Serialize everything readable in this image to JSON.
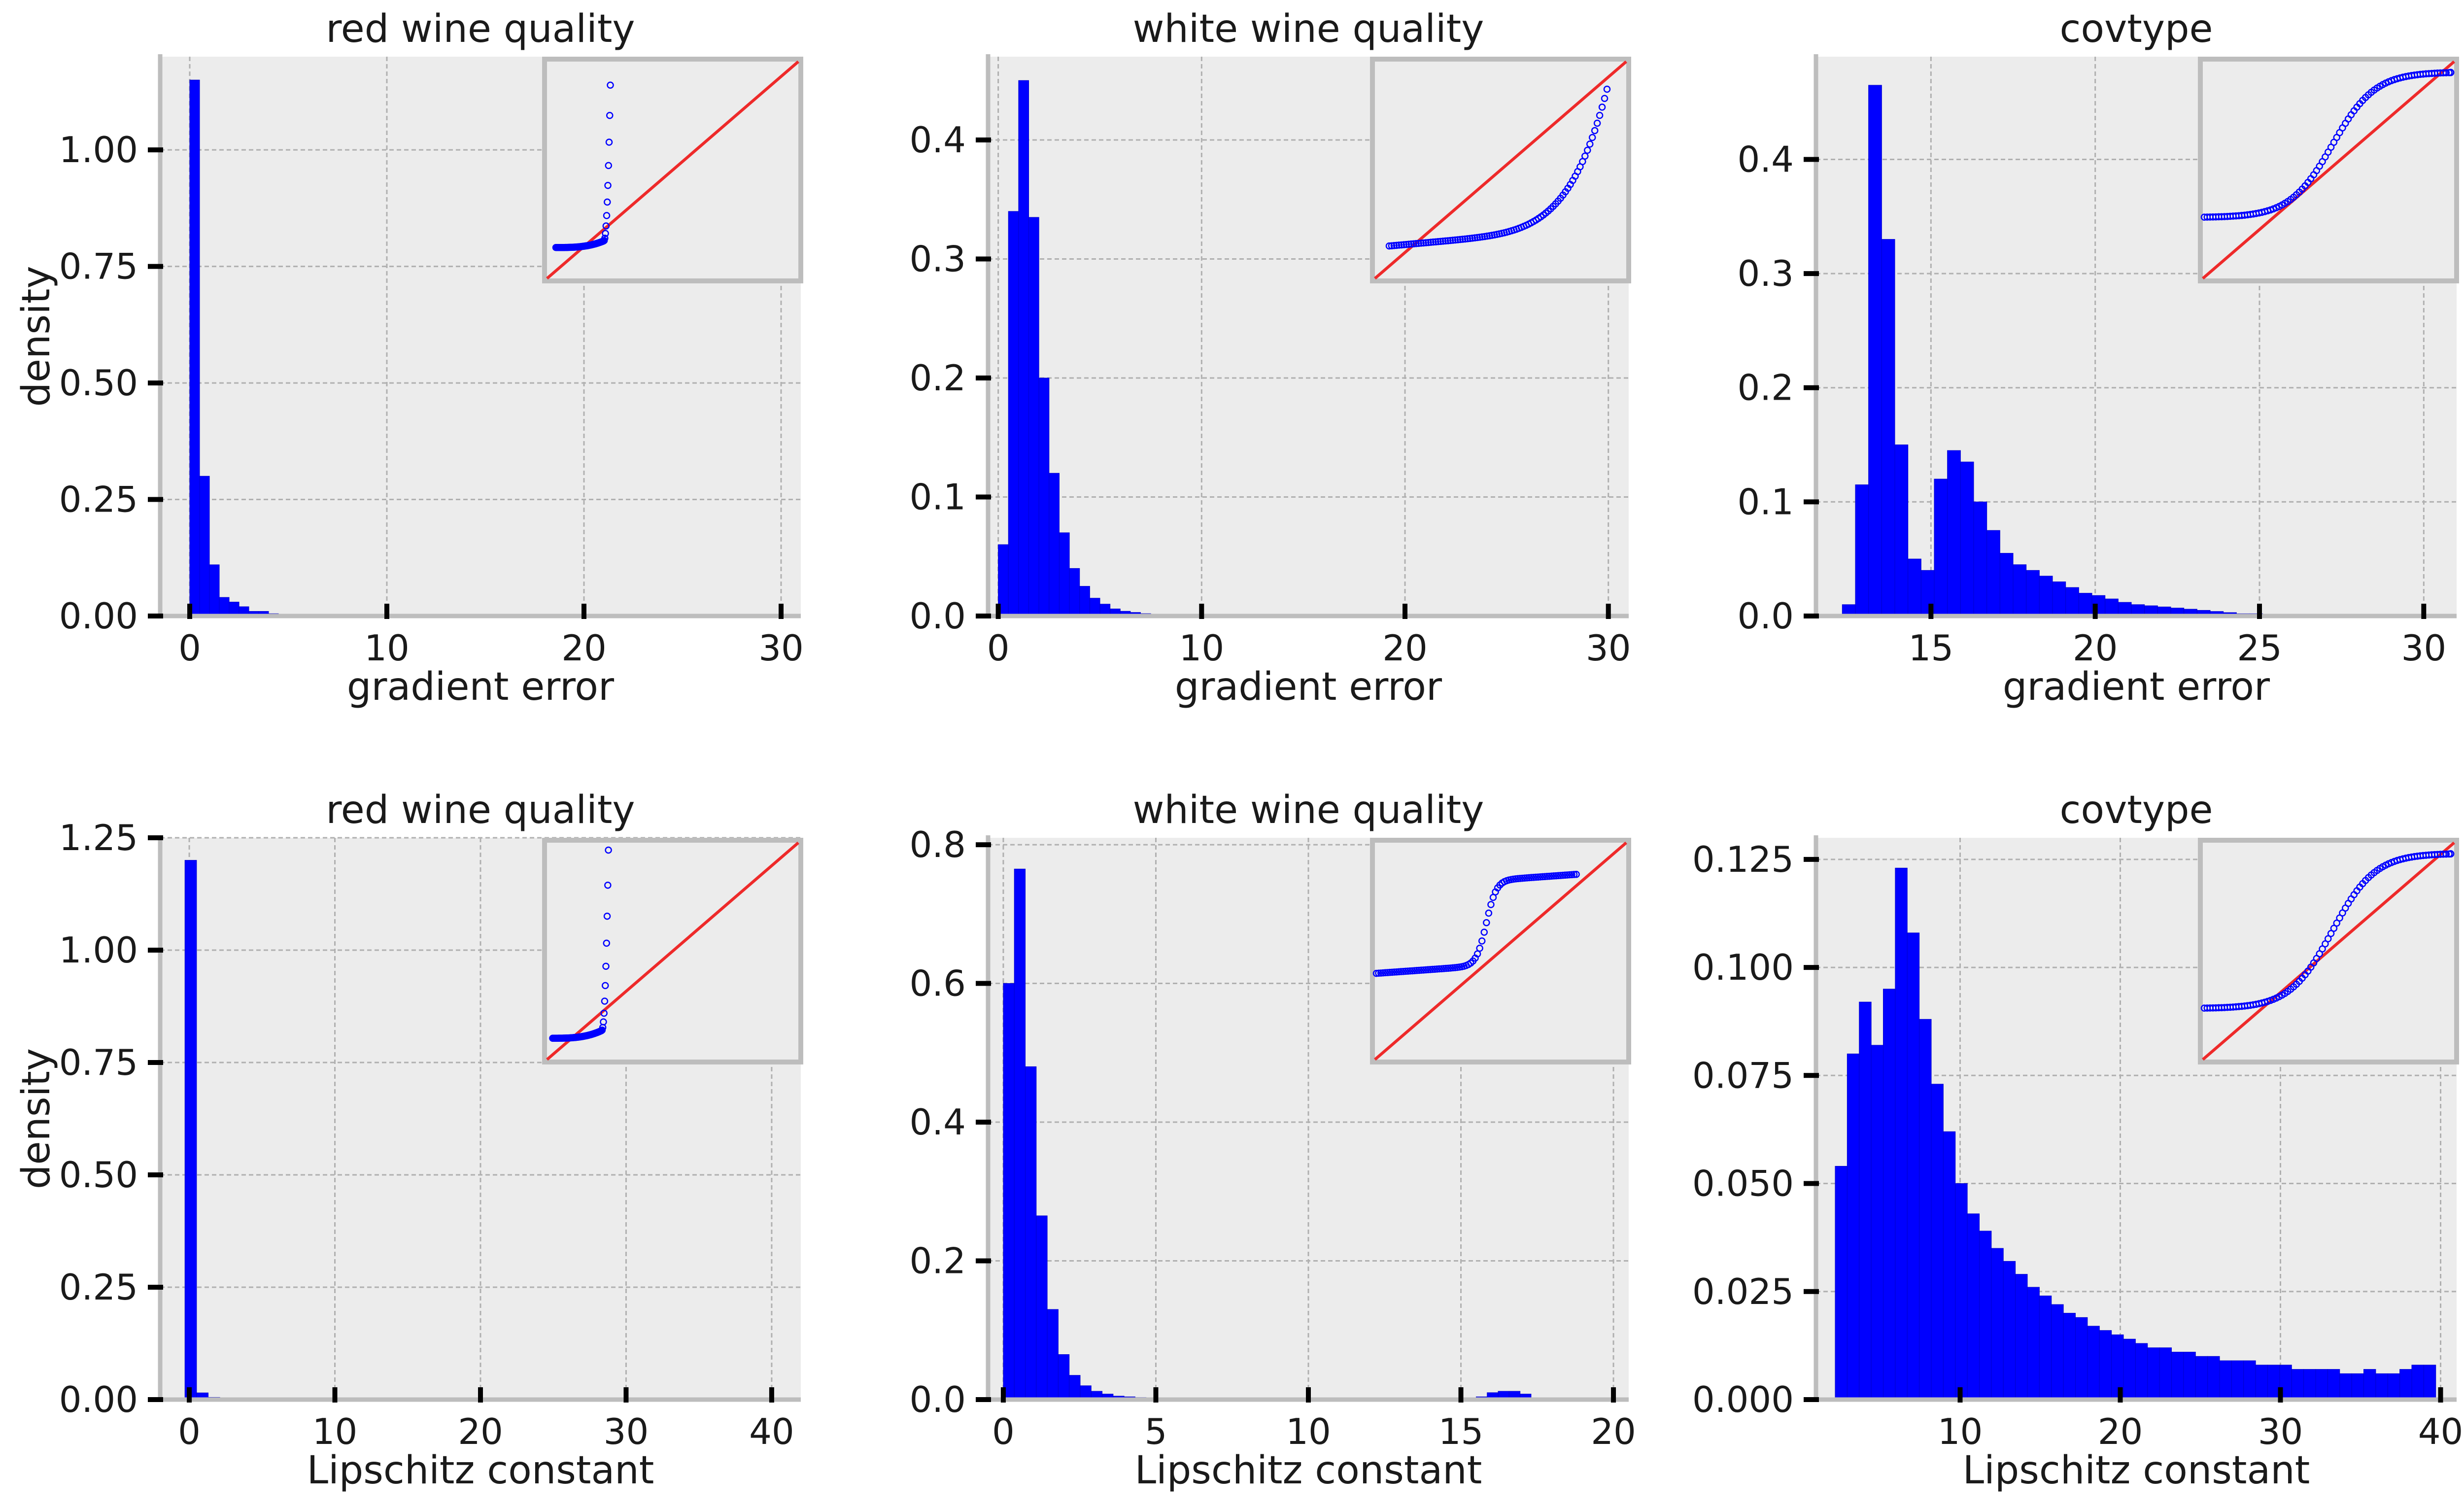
{
  "chart_data": [
    {
      "type": "bar",
      "title": "red wine quality",
      "xlabel": "gradient error",
      "ylabel": "density",
      "xlim": [
        -1.5,
        31
      ],
      "ylim": [
        0,
        1.2
      ],
      "xticks": [
        0,
        10,
        20,
        30
      ],
      "xtick_labels": [
        "0",
        "10",
        "20",
        "30"
      ],
      "yticks": [
        0,
        0.25,
        0.5,
        0.75,
        1.0
      ],
      "ytick_labels": [
        "0.00",
        "0.25",
        "0.50",
        "0.75",
        "1.00"
      ],
      "grid": true,
      "bin_start": 0,
      "bin_width": 0.5,
      "values": [
        1.15,
        0.3,
        0.11,
        0.04,
        0.03,
        0.02,
        0.01,
        0.01,
        0.005,
        0.003,
        0.002
      ],
      "qq_inset": {
        "shape": "spike",
        "x0": 0.1,
        "x1": 0.95,
        "y0": 0.1,
        "y1": 0.92
      }
    },
    {
      "type": "bar",
      "title": "white wine quality",
      "xlabel": "gradient error",
      "ylabel": "",
      "xlim": [
        -0.5,
        31
      ],
      "ylim": [
        0,
        0.47
      ],
      "xticks": [
        0,
        10,
        20,
        30
      ],
      "xtick_labels": [
        "0",
        "10",
        "20",
        "30"
      ],
      "yticks": [
        0,
        0.1,
        0.2,
        0.3,
        0.4
      ],
      "ytick_labels": [
        "0.0",
        "0.1",
        "0.2",
        "0.3",
        "0.4"
      ],
      "grid": true,
      "bin_start": 0,
      "bin_width": 0.5,
      "values": [
        0.06,
        0.34,
        0.45,
        0.335,
        0.2,
        0.12,
        0.07,
        0.04,
        0.025,
        0.015,
        0.01,
        0.006,
        0.004,
        0.003,
        0.002,
        0.001
      ],
      "qq_inset": {
        "shape": "curve_up",
        "x0": 0.05,
        "x1": 0.9,
        "y0": 0.1,
        "y1": 0.9
      }
    },
    {
      "type": "bar",
      "title": "covtype",
      "xlabel": "gradient error",
      "ylabel": "",
      "xlim": [
        11.5,
        31
      ],
      "ylim": [
        0,
        0.49
      ],
      "xticks": [
        15,
        20,
        25,
        30
      ],
      "xtick_labels": [
        "15",
        "20",
        "25",
        "30"
      ],
      "yticks": [
        0,
        0.1,
        0.2,
        0.3,
        0.4
      ],
      "ytick_labels": [
        "0.0",
        "0.1",
        "0.2",
        "0.3",
        "0.4"
      ],
      "grid": true,
      "bin_start": 12.3,
      "bin_width": 0.4,
      "values": [
        0.01,
        0.115,
        0.465,
        0.33,
        0.15,
        0.05,
        0.04,
        0.12,
        0.145,
        0.135,
        0.1,
        0.075,
        0.055,
        0.045,
        0.04,
        0.035,
        0.03,
        0.025,
        0.02,
        0.018,
        0.015,
        0.012,
        0.01,
        0.009,
        0.008,
        0.007,
        0.006,
        0.005,
        0.004,
        0.003,
        0.002,
        0.002,
        0.001
      ],
      "qq_inset": {
        "shape": "s_curve",
        "x0": 0,
        "x1": 1,
        "y0": 0.25,
        "y1": 1
      }
    },
    {
      "type": "bar",
      "title": "red wine quality",
      "xlabel": "Lipschitz constant",
      "ylabel": "density",
      "xlim": [
        -2,
        42
      ],
      "ylim": [
        0,
        1.25
      ],
      "xticks": [
        0,
        10,
        20,
        30,
        40
      ],
      "xtick_labels": [
        "0",
        "10",
        "20",
        "30",
        "40"
      ],
      "yticks": [
        0,
        0.25,
        0.5,
        0.75,
        1.0,
        1.25
      ],
      "ytick_labels": [
        "0.00",
        "0.25",
        "0.50",
        "0.75",
        "1.00",
        "1.25"
      ],
      "grid": true,
      "bin_start": -0.3,
      "bin_width": 0.8,
      "values": [
        1.2,
        0.015,
        0.005,
        0.002
      ],
      "qq_inset": {
        "shape": "spike",
        "x0": 0.05,
        "x1": 0.92,
        "y0": 0.05,
        "y1": 1.0
      }
    },
    {
      "type": "bar",
      "title": "white wine quality",
      "xlabel": "Lipschitz constant",
      "ylabel": "",
      "xlim": [
        -0.5,
        20.5
      ],
      "ylim": [
        0,
        0.81
      ],
      "xticks": [
        0,
        5,
        10,
        15,
        20
      ],
      "xtick_labels": [
        "0",
        "5",
        "10",
        "15",
        "20"
      ],
      "yticks": [
        0,
        0.2,
        0.4,
        0.6,
        0.8
      ],
      "ytick_labels": [
        "0.0",
        "0.2",
        "0.4",
        "0.6",
        "0.8"
      ],
      "grid": true,
      "bin_start": 0,
      "bin_width": 0.36,
      "values": [
        0.6,
        0.765,
        0.48,
        0.265,
        0.13,
        0.065,
        0.035,
        0.02,
        0.012,
        0.008,
        0.005,
        0.004,
        0.003,
        0.002,
        0.002
      ],
      "extra_bars": {
        "bin_start": 15.5,
        "bin_width": 0.36,
        "values": [
          0.004,
          0.01,
          0.012,
          0.012,
          0.008
        ]
      },
      "qq_inset": {
        "shape": "step",
        "x0": 0,
        "x1": 0.78,
        "y0": 0.25,
        "y1": 0.95
      }
    },
    {
      "type": "bar",
      "title": "covtype",
      "xlabel": "Lipschitz constant",
      "ylabel": "",
      "xlim": [
        1,
        41
      ],
      "ylim": [
        0,
        0.13
      ],
      "xticks": [
        10,
        20,
        30,
        40
      ],
      "xtick_labels": [
        "10",
        "20",
        "30",
        "40"
      ],
      "yticks": [
        0,
        0.025,
        0.05,
        0.075,
        0.1,
        0.125
      ],
      "ytick_labels": [
        "0.000",
        "0.025",
        "0.050",
        "0.075",
        "0.100",
        "0.125"
      ],
      "grid": true,
      "bin_start": 2.2,
      "bin_width": 0.75,
      "values": [
        0.054,
        0.08,
        0.092,
        0.082,
        0.095,
        0.123,
        0.108,
        0.088,
        0.073,
        0.062,
        0.05,
        0.043,
        0.039,
        0.035,
        0.032,
        0.029,
        0.026,
        0.024,
        0.022,
        0.02,
        0.019,
        0.017,
        0.016,
        0.015,
        0.014,
        0.013,
        0.012,
        0.012,
        0.011,
        0.011,
        0.01,
        0.01,
        0.009,
        0.009,
        0.009,
        0.008,
        0.008,
        0.008,
        0.007,
        0.007,
        0.007,
        0.007,
        0.006,
        0.006,
        0.007,
        0.006,
        0.006,
        0.007,
        0.008,
        0.008
      ],
      "qq_inset": {
        "shape": "s_curve",
        "x0": 0,
        "x1": 1,
        "y0": 0.2,
        "y1": 1
      }
    }
  ],
  "colors": {
    "bars": "#0000ff",
    "qq_line": "#ee2a2a",
    "qq_points": "#0000ff",
    "axes_bg": "#ececec",
    "grid": "#b0b0b0",
    "spine": "#bdbdbd"
  }
}
